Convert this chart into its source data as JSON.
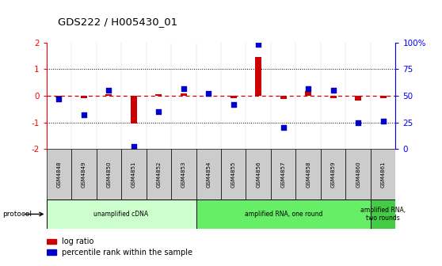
{
  "title": "GDS222 / H005430_01",
  "samples": [
    "GSM4848",
    "GSM4849",
    "GSM4850",
    "GSM4851",
    "GSM4852",
    "GSM4853",
    "GSM4854",
    "GSM4855",
    "GSM4856",
    "GSM4857",
    "GSM4858",
    "GSM4859",
    "GSM4860",
    "GSM4861"
  ],
  "log_ratio": [
    -0.05,
    -0.1,
    0.07,
    -1.05,
    0.07,
    0.1,
    0.0,
    -0.1,
    1.45,
    -0.12,
    0.18,
    -0.08,
    -0.18,
    -0.08
  ],
  "percentile": [
    47,
    32,
    55,
    2,
    35,
    57,
    52,
    42,
    98,
    20,
    57,
    55,
    25,
    26
  ],
  "ylim_left": [
    -2,
    2
  ],
  "ylim_right": [
    0,
    100
  ],
  "protocol_groups": [
    {
      "label": "unamplified cDNA",
      "start": 0,
      "end": 6,
      "color": "#ccffcc"
    },
    {
      "label": "amplified RNA, one round",
      "start": 6,
      "end": 13,
      "color": "#66ee66"
    },
    {
      "label": "amplified RNA,\ntwo rounds",
      "start": 13,
      "end": 14,
      "color": "#44cc44"
    }
  ],
  "bar_color": "#cc0000",
  "dot_color": "#0000cc",
  "zero_line_color": "#cc0000",
  "ref_line_color": "#000000",
  "background_color": "#ffffff",
  "sample_cell_color": "#cccccc",
  "legend_bar_label": "log ratio",
  "legend_dot_label": "percentile rank within the sample"
}
